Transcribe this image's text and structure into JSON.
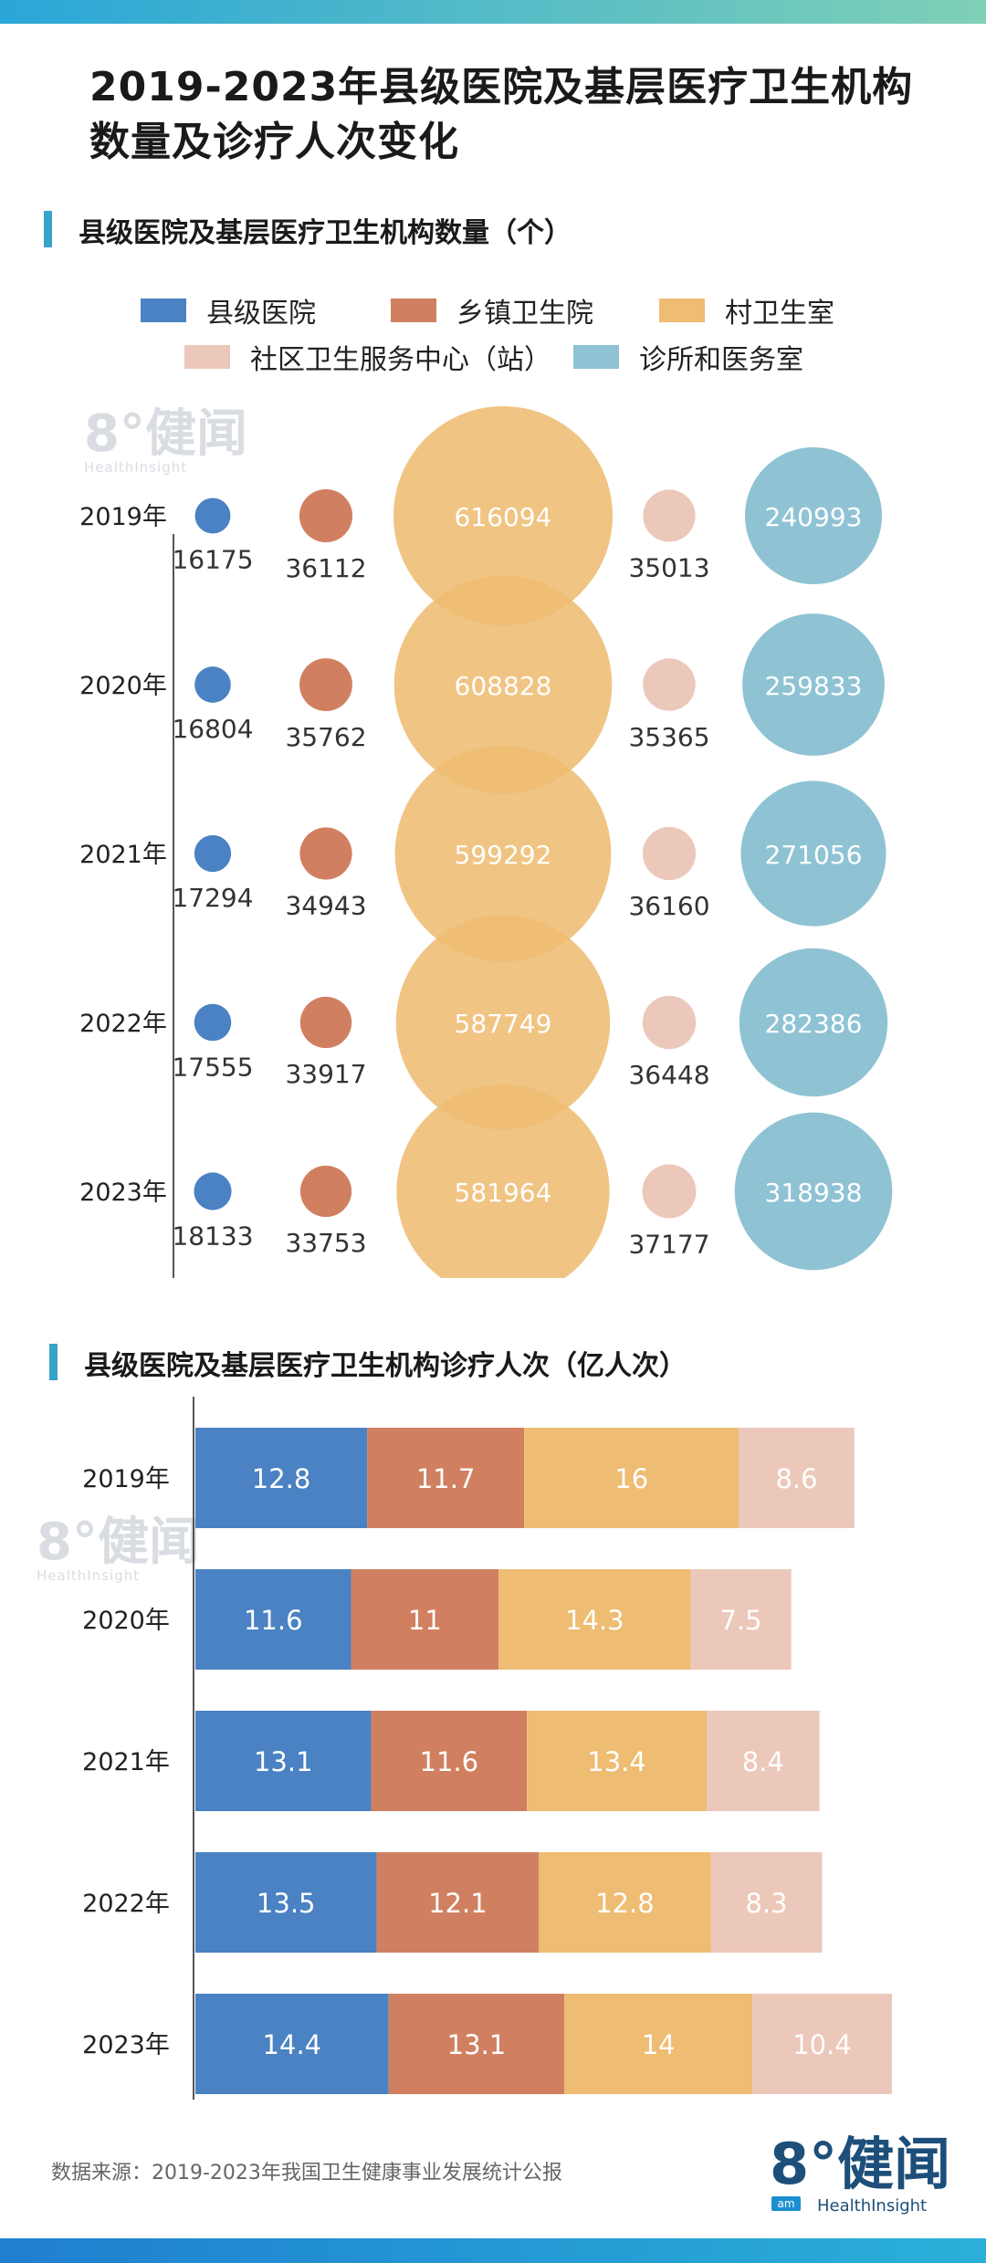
{
  "title_lines": [
    "2019-2023年县级医院及基层医疗卫生机构",
    "数量及诊疗人次变化"
  ],
  "section1_title": "县级医院及基层医疗卫生机构数量（个）",
  "section2_title": "县级医院及基层医疗卫生机构诊疗人次（亿人次）",
  "legend": [
    {
      "label": "县级医院",
      "color": "#4a82c3"
    },
    {
      "label": "乡镇卫生院",
      "color": "#d08060"
    },
    {
      "label": "村卫生室",
      "color": "#eebc72"
    },
    {
      "label": "社区卫生服务中心（站）",
      "color": "#ecc8ba"
    },
    {
      "label": "诊所和医务室",
      "color": "#8fc3d4"
    }
  ],
  "watermark": {
    "main": "8°健闻",
    "sub": "HealthInsight"
  },
  "chart_data": [
    {
      "type": "scatter",
      "title": "县级医院及基层医疗卫生机构数量（个）",
      "categories": [
        "2019年",
        "2020年",
        "2021年",
        "2022年",
        "2023年"
      ],
      "series": [
        {
          "name": "县级医院",
          "color": "#4a82c3",
          "values": [
            16175,
            16804,
            17294,
            17555,
            18133
          ]
        },
        {
          "name": "乡镇卫生院",
          "color": "#d08060",
          "values": [
            36112,
            35762,
            34943,
            33917,
            33753
          ]
        },
        {
          "name": "村卫生室",
          "color": "#eebc72",
          "values": [
            616094,
            608828,
            599292,
            587749,
            581964
          ]
        },
        {
          "name": "社区卫生服务中心（站）",
          "color": "#ecc8ba",
          "values": [
            35013,
            35365,
            36160,
            36448,
            37177
          ]
        },
        {
          "name": "诊所和医务室",
          "color": "#8fc3d4",
          "values": [
            240993,
            259833,
            271056,
            282386,
            318938
          ]
        }
      ]
    },
    {
      "type": "bar",
      "orientation": "horizontal",
      "stacked": true,
      "title": "县级医院及基层医疗卫生机构诊疗人次（亿人次）",
      "categories": [
        "2019年",
        "2020年",
        "2021年",
        "2022年",
        "2023年"
      ],
      "series": [
        {
          "name": "县级医院",
          "color": "#4a82c3",
          "values": [
            12.8,
            11.6,
            13.1,
            13.5,
            14.4
          ]
        },
        {
          "name": "乡镇卫生院",
          "color": "#d08060",
          "values": [
            11.7,
            11,
            11.6,
            12.1,
            13.1
          ]
        },
        {
          "name": "村卫生室",
          "color": "#eebc72",
          "values": [
            16,
            14.3,
            13.4,
            12.8,
            14
          ]
        },
        {
          "name": "社区卫生服务中心（站）",
          "color": "#ecc8ba",
          "values": [
            8.6,
            7.5,
            8.4,
            8.3,
            10.4
          ]
        }
      ]
    }
  ],
  "footer": {
    "source": "数据来源：2019-2023年我国卫生健康事业发展统计公报"
  },
  "logo": {
    "main": "8°健闻",
    "sub": "HealthInsight",
    "badge": "am"
  }
}
